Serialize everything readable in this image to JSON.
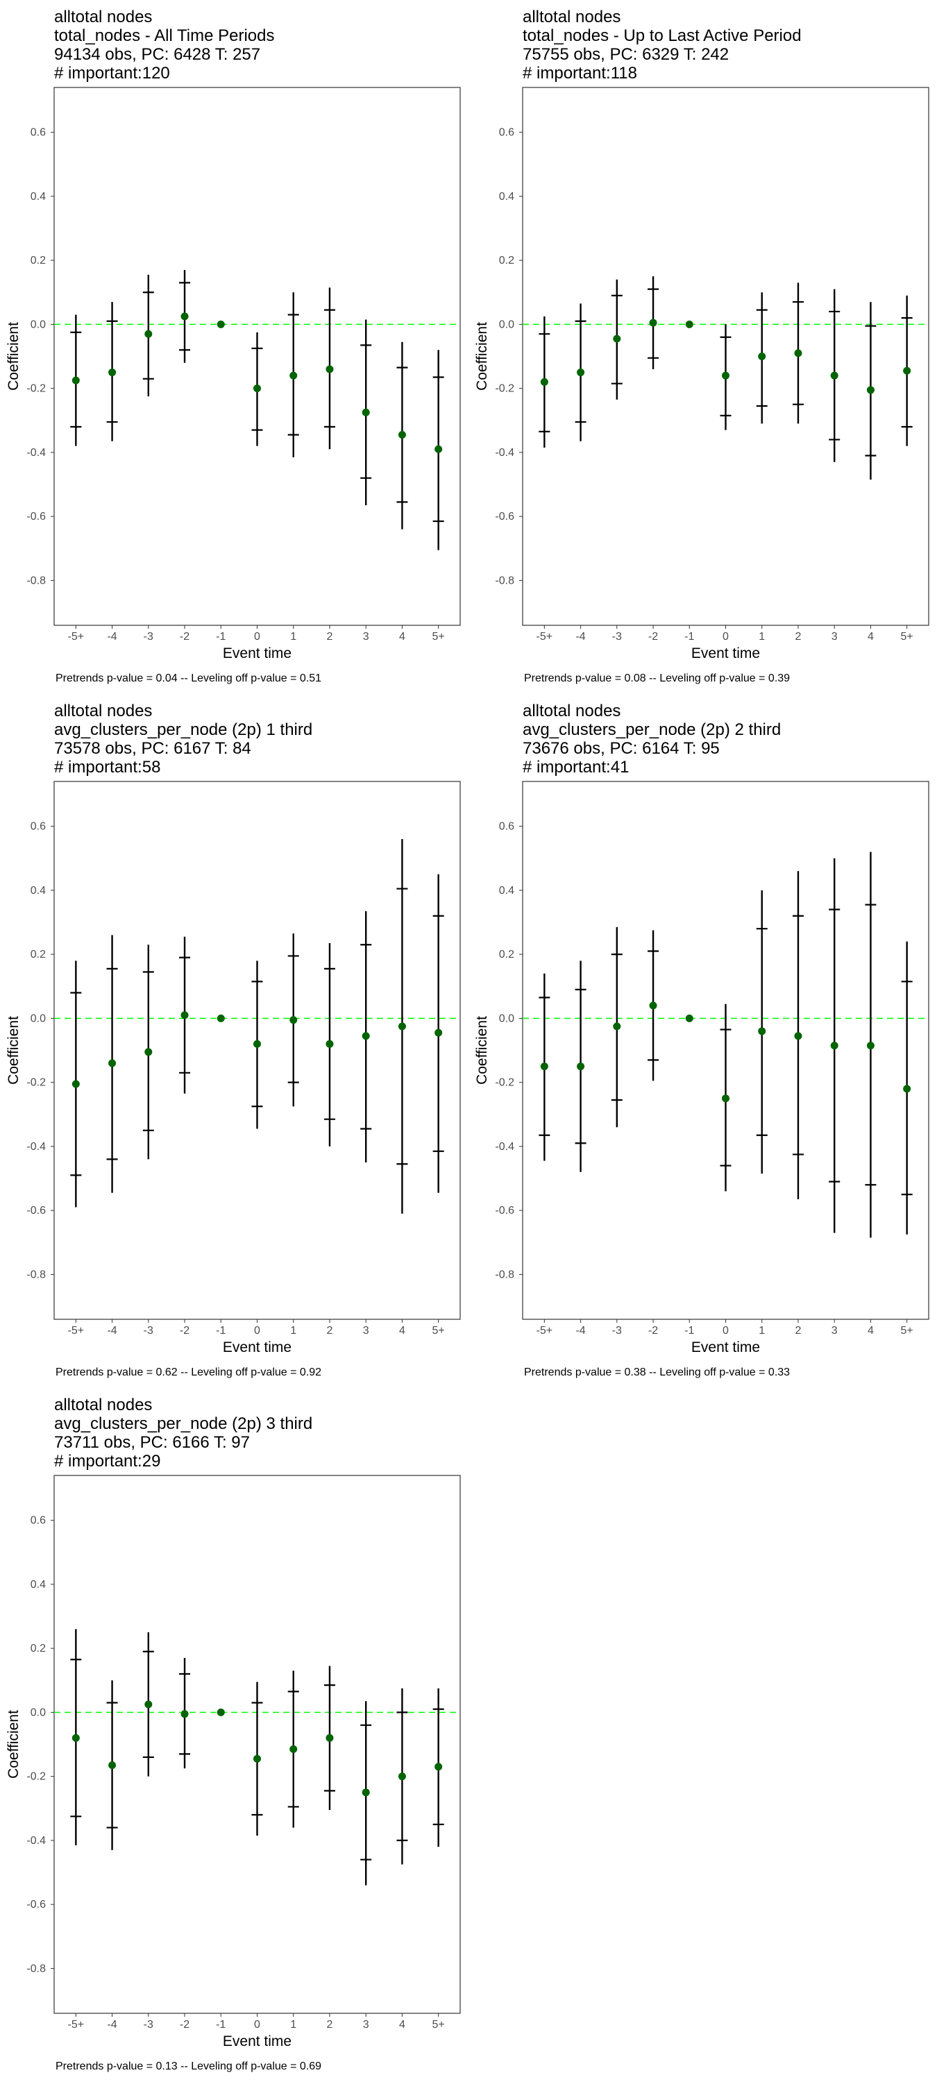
{
  "figure": {
    "background": "#ffffff",
    "point_color": "#006400",
    "reference_line_color": "#00ff00",
    "errorbar_color": "#000000"
  },
  "chart_data": [
    {
      "type": "scatter",
      "title_lines": [
        " alltotal nodes",
        "total_nodes - All Time Periods",
        "94134 obs, PC: 6428 T: 257",
        "# important:120"
      ],
      "xlabel": "Event time",
      "ylabel": "Coefficient",
      "categories": [
        "-5+",
        "-4",
        "-3",
        "-2",
        "-1",
        "0",
        "1",
        "2",
        "3",
        "4",
        "5+"
      ],
      "yticks": [
        0.6,
        0.4,
        0.2,
        0.0,
        -0.2,
        -0.4,
        -0.6,
        -0.8
      ],
      "ytick_labels": [
        "0.6",
        "0.4",
        "0.2",
        "0.0",
        "-0.2",
        "-0.4",
        "-0.6",
        "-0.8"
      ],
      "ylim": [
        -0.94,
        0.74
      ],
      "reference_line": 0,
      "grid": false,
      "points": [
        {
          "x": "-5+",
          "y": -0.175,
          "ci90": [
            -0.32,
            -0.025
          ],
          "ci95": [
            -0.38,
            0.03
          ]
        },
        {
          "x": "-4",
          "y": -0.15,
          "ci90": [
            -0.305,
            0.01
          ],
          "ci95": [
            -0.365,
            0.07
          ]
        },
        {
          "x": "-3",
          "y": -0.03,
          "ci90": [
            -0.17,
            0.1
          ],
          "ci95": [
            -0.225,
            0.155
          ]
        },
        {
          "x": "-2",
          "y": 0.025,
          "ci90": [
            -0.08,
            0.13
          ],
          "ci95": [
            -0.12,
            0.17
          ]
        },
        {
          "x": "-1",
          "y": 0.0,
          "ci90": null,
          "ci95": null
        },
        {
          "x": "0",
          "y": -0.2,
          "ci90": [
            -0.33,
            -0.075
          ],
          "ci95": [
            -0.38,
            -0.025
          ]
        },
        {
          "x": "1",
          "y": -0.16,
          "ci90": [
            -0.345,
            0.03
          ],
          "ci95": [
            -0.415,
            0.1
          ]
        },
        {
          "x": "2",
          "y": -0.14,
          "ci90": [
            -0.32,
            0.045
          ],
          "ci95": [
            -0.39,
            0.115
          ]
        },
        {
          "x": "3",
          "y": -0.275,
          "ci90": [
            -0.48,
            -0.065
          ],
          "ci95": [
            -0.565,
            0.015
          ]
        },
        {
          "x": "4",
          "y": -0.345,
          "ci90": [
            -0.555,
            -0.135
          ],
          "ci95": [
            -0.64,
            -0.055
          ]
        },
        {
          "x": "5+",
          "y": -0.39,
          "ci90": [
            -0.615,
            -0.165
          ],
          "ci95": [
            -0.705,
            -0.08
          ]
        }
      ],
      "footnote": "Pretrends p-value = 0.04 -- Leveling off p-value = 0.51"
    },
    {
      "type": "scatter",
      "title_lines": [
        " alltotal nodes",
        "total_nodes - Up to Last Active Period",
        "75755 obs, PC: 6329 T: 242",
        "# important:118"
      ],
      "xlabel": "Event time",
      "ylabel": "Coefficient",
      "categories": [
        "-5+",
        "-4",
        "-3",
        "-2",
        "-1",
        "0",
        "1",
        "2",
        "3",
        "4",
        "5+"
      ],
      "yticks": [
        0.6,
        0.4,
        0.2,
        0.0,
        -0.2,
        -0.4,
        -0.6,
        -0.8
      ],
      "ytick_labels": [
        "0.6",
        "0.4",
        "0.2",
        "0.0",
        "-0.2",
        "-0.4",
        "-0.6",
        "-0.8"
      ],
      "ylim": [
        -0.94,
        0.74
      ],
      "reference_line": 0,
      "grid": false,
      "points": [
        {
          "x": "-5+",
          "y": -0.18,
          "ci90": [
            -0.335,
            -0.03
          ],
          "ci95": [
            -0.385,
            0.025
          ]
        },
        {
          "x": "-4",
          "y": -0.15,
          "ci90": [
            -0.305,
            0.01
          ],
          "ci95": [
            -0.365,
            0.065
          ]
        },
        {
          "x": "-3",
          "y": -0.045,
          "ci90": [
            -0.185,
            0.09
          ],
          "ci95": [
            -0.235,
            0.14
          ]
        },
        {
          "x": "-2",
          "y": 0.005,
          "ci90": [
            -0.105,
            0.11
          ],
          "ci95": [
            -0.14,
            0.15
          ]
        },
        {
          "x": "-1",
          "y": 0.0,
          "ci90": null,
          "ci95": null
        },
        {
          "x": "0",
          "y": -0.16,
          "ci90": [
            -0.285,
            -0.04
          ],
          "ci95": [
            -0.33,
            0.0
          ]
        },
        {
          "x": "1",
          "y": -0.1,
          "ci90": [
            -0.255,
            0.045
          ],
          "ci95": [
            -0.31,
            0.1
          ]
        },
        {
          "x": "2",
          "y": -0.09,
          "ci90": [
            -0.25,
            0.07
          ],
          "ci95": [
            -0.31,
            0.13
          ]
        },
        {
          "x": "3",
          "y": -0.16,
          "ci90": [
            -0.36,
            0.04
          ],
          "ci95": [
            -0.43,
            0.11
          ]
        },
        {
          "x": "4",
          "y": -0.205,
          "ci90": [
            -0.41,
            -0.005
          ],
          "ci95": [
            -0.485,
            0.07
          ]
        },
        {
          "x": "5+",
          "y": -0.145,
          "ci90": [
            -0.32,
            0.02
          ],
          "ci95": [
            -0.38,
            0.09
          ]
        }
      ],
      "footnote": "Pretrends p-value = 0.08 -- Leveling off p-value = 0.39"
    },
    {
      "type": "scatter",
      "title_lines": [
        " alltotal nodes",
        "avg_clusters_per_node (2p) 1 third",
        "73578 obs, PC: 6167 T: 84",
        "# important:58"
      ],
      "xlabel": "Event time",
      "ylabel": "Coefficient",
      "categories": [
        "-5+",
        "-4",
        "-3",
        "-2",
        "-1",
        "0",
        "1",
        "2",
        "3",
        "4",
        "5+"
      ],
      "yticks": [
        0.6,
        0.4,
        0.2,
        0.0,
        -0.2,
        -0.4,
        -0.6,
        -0.8
      ],
      "ytick_labels": [
        "0.6",
        "0.4",
        "0.2",
        "0.0",
        "-0.2",
        "-0.4",
        "-0.6",
        "-0.8"
      ],
      "ylim": [
        -0.94,
        0.74
      ],
      "reference_line": 0,
      "grid": false,
      "points": [
        {
          "x": "-5+",
          "y": -0.205,
          "ci90": [
            -0.49,
            0.08
          ],
          "ci95": [
            -0.59,
            0.18
          ]
        },
        {
          "x": "-4",
          "y": -0.14,
          "ci90": [
            -0.44,
            0.155
          ],
          "ci95": [
            -0.545,
            0.26
          ]
        },
        {
          "x": "-3",
          "y": -0.105,
          "ci90": [
            -0.35,
            0.145
          ],
          "ci95": [
            -0.44,
            0.23
          ]
        },
        {
          "x": "-2",
          "y": 0.01,
          "ci90": [
            -0.17,
            0.19
          ],
          "ci95": [
            -0.235,
            0.255
          ]
        },
        {
          "x": "-1",
          "y": 0.0,
          "ci90": null,
          "ci95": null
        },
        {
          "x": "0",
          "y": -0.08,
          "ci90": [
            -0.275,
            0.115
          ],
          "ci95": [
            -0.345,
            0.18
          ]
        },
        {
          "x": "1",
          "y": -0.005,
          "ci90": [
            -0.2,
            0.195
          ],
          "ci95": [
            -0.275,
            0.265
          ]
        },
        {
          "x": "2",
          "y": -0.08,
          "ci90": [
            -0.315,
            0.155
          ],
          "ci95": [
            -0.4,
            0.235
          ]
        },
        {
          "x": "3",
          "y": -0.055,
          "ci90": [
            -0.345,
            0.23
          ],
          "ci95": [
            -0.45,
            0.335
          ]
        },
        {
          "x": "4",
          "y": -0.025,
          "ci90": [
            -0.455,
            0.405
          ],
          "ci95": [
            -0.61,
            0.56
          ]
        },
        {
          "x": "5+",
          "y": -0.045,
          "ci90": [
            -0.415,
            0.32
          ],
          "ci95": [
            -0.545,
            0.45
          ]
        }
      ],
      "footnote": "Pretrends p-value = 0.62 -- Leveling off p-value = 0.92"
    },
    {
      "type": "scatter",
      "title_lines": [
        " alltotal nodes",
        "avg_clusters_per_node (2p) 2 third",
        "73676 obs, PC: 6164 T: 95",
        "# important:41"
      ],
      "xlabel": "Event time",
      "ylabel": "Coefficient",
      "categories": [
        "-5+",
        "-4",
        "-3",
        "-2",
        "-1",
        "0",
        "1",
        "2",
        "3",
        "4",
        "5+"
      ],
      "yticks": [
        0.6,
        0.4,
        0.2,
        0.0,
        -0.2,
        -0.4,
        -0.6,
        -0.8
      ],
      "ytick_labels": [
        "0.6",
        "0.4",
        "0.2",
        "0.0",
        "-0.2",
        "-0.4",
        "-0.6",
        "-0.8"
      ],
      "ylim": [
        -0.94,
        0.74
      ],
      "reference_line": 0,
      "grid": false,
      "points": [
        {
          "x": "-5+",
          "y": -0.15,
          "ci90": [
            -0.365,
            0.065
          ],
          "ci95": [
            -0.445,
            0.14
          ]
        },
        {
          "x": "-4",
          "y": -0.15,
          "ci90": [
            -0.39,
            0.09
          ],
          "ci95": [
            -0.48,
            0.18
          ]
        },
        {
          "x": "-3",
          "y": -0.025,
          "ci90": [
            -0.255,
            0.2
          ],
          "ci95": [
            -0.34,
            0.285
          ]
        },
        {
          "x": "-2",
          "y": 0.04,
          "ci90": [
            -0.13,
            0.21
          ],
          "ci95": [
            -0.195,
            0.275
          ]
        },
        {
          "x": "-1",
          "y": 0.0,
          "ci90": null,
          "ci95": null
        },
        {
          "x": "0",
          "y": -0.25,
          "ci90": [
            -0.46,
            -0.035
          ],
          "ci95": [
            -0.54,
            0.045
          ]
        },
        {
          "x": "1",
          "y": -0.04,
          "ci90": [
            -0.365,
            0.28
          ],
          "ci95": [
            -0.485,
            0.4
          ]
        },
        {
          "x": "2",
          "y": -0.055,
          "ci90": [
            -0.425,
            0.32
          ],
          "ci95": [
            -0.565,
            0.46
          ]
        },
        {
          "x": "3",
          "y": -0.085,
          "ci90": [
            -0.51,
            0.34
          ],
          "ci95": [
            -0.67,
            0.5
          ]
        },
        {
          "x": "4",
          "y": -0.085,
          "ci90": [
            -0.52,
            0.355
          ],
          "ci95": [
            -0.685,
            0.52
          ]
        },
        {
          "x": "5+",
          "y": -0.22,
          "ci90": [
            -0.55,
            0.115
          ],
          "ci95": [
            -0.675,
            0.24
          ]
        }
      ],
      "footnote": "Pretrends p-value = 0.38 -- Leveling off p-value = 0.33"
    },
    {
      "type": "scatter",
      "title_lines": [
        " alltotal nodes",
        "avg_clusters_per_node (2p) 3 third",
        "73711 obs, PC: 6166 T: 97",
        "# important:29"
      ],
      "xlabel": "Event time",
      "ylabel": "Coefficient",
      "categories": [
        "-5+",
        "-4",
        "-3",
        "-2",
        "-1",
        "0",
        "1",
        "2",
        "3",
        "4",
        "5+"
      ],
      "yticks": [
        0.6,
        0.4,
        0.2,
        0.0,
        -0.2,
        -0.4,
        -0.6,
        -0.8
      ],
      "ytick_labels": [
        "0.6",
        "0.4",
        "0.2",
        "0.0",
        "-0.2",
        "-0.4",
        "-0.6",
        "-0.8"
      ],
      "ylim": [
        -0.94,
        0.74
      ],
      "reference_line": 0,
      "grid": false,
      "points": [
        {
          "x": "-5+",
          "y": -0.08,
          "ci90": [
            -0.325,
            0.165
          ],
          "ci95": [
            -0.415,
            0.26
          ]
        },
        {
          "x": "-4",
          "y": -0.165,
          "ci90": [
            -0.36,
            0.03
          ],
          "ci95": [
            -0.43,
            0.1
          ]
        },
        {
          "x": "-3",
          "y": 0.025,
          "ci90": [
            -0.14,
            0.19
          ],
          "ci95": [
            -0.2,
            0.25
          ]
        },
        {
          "x": "-2",
          "y": -0.005,
          "ci90": [
            -0.13,
            0.12
          ],
          "ci95": [
            -0.175,
            0.17
          ]
        },
        {
          "x": "-1",
          "y": 0.0,
          "ci90": null,
          "ci95": null
        },
        {
          "x": "0",
          "y": -0.145,
          "ci90": [
            -0.32,
            0.03
          ],
          "ci95": [
            -0.385,
            0.095
          ]
        },
        {
          "x": "1",
          "y": -0.115,
          "ci90": [
            -0.295,
            0.065
          ],
          "ci95": [
            -0.36,
            0.13
          ]
        },
        {
          "x": "2",
          "y": -0.08,
          "ci90": [
            -0.245,
            0.085
          ],
          "ci95": [
            -0.305,
            0.145
          ]
        },
        {
          "x": "3",
          "y": -0.25,
          "ci90": [
            -0.46,
            -0.04
          ],
          "ci95": [
            -0.54,
            0.035
          ]
        },
        {
          "x": "4",
          "y": -0.2,
          "ci90": [
            -0.4,
            0.0
          ],
          "ci95": [
            -0.475,
            0.075
          ]
        },
        {
          "x": "5+",
          "y": -0.17,
          "ci90": [
            -0.35,
            0.01
          ],
          "ci95": [
            -0.42,
            0.075
          ]
        }
      ],
      "footnote": "Pretrends p-value = 0.13 -- Leveling off p-value = 0.69"
    }
  ]
}
